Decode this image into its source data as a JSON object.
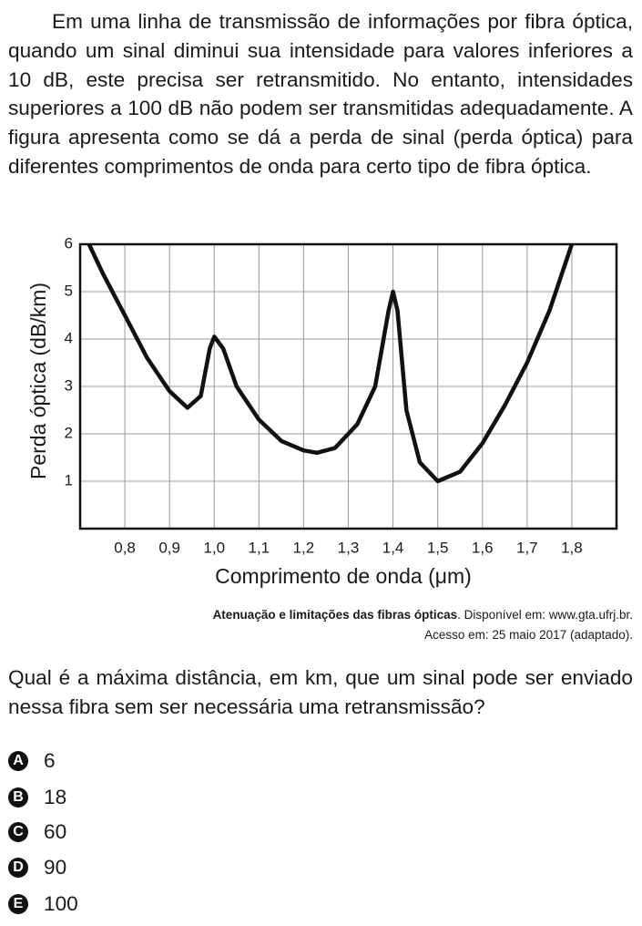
{
  "intro": "Em uma linha de transmissão de informações por fibra óptica, quando um sinal diminui sua intensidade para valores inferiores a 10 dB, este precisa ser retransmitido. No entanto, intensidades superiores a 100 dB não podem ser transmitidas adequadamente. A figura apresenta como se dá a perda de sinal (perda óptica) para diferentes comprimentos de onda para certo tipo de fibra óptica.",
  "chart_data": {
    "type": "line",
    "x_label": "Comprimento de onda (μm)",
    "y_label": "Perda óptica (dB/km)",
    "x": [
      0.72,
      0.75,
      0.8,
      0.85,
      0.9,
      0.94,
      0.97,
      0.99,
      1.0,
      1.02,
      1.05,
      1.1,
      1.15,
      1.2,
      1.23,
      1.27,
      1.32,
      1.36,
      1.39,
      1.4,
      1.41,
      1.43,
      1.46,
      1.5,
      1.55,
      1.6,
      1.65,
      1.7,
      1.75,
      1.8
    ],
    "y": [
      6.0,
      5.4,
      4.5,
      3.6,
      2.9,
      2.55,
      2.8,
      3.8,
      4.05,
      3.8,
      3.0,
      2.3,
      1.85,
      1.65,
      1.6,
      1.7,
      2.2,
      3.0,
      4.6,
      5.0,
      4.6,
      2.5,
      1.4,
      1.0,
      1.2,
      1.8,
      2.6,
      3.5,
      4.6,
      6.0
    ],
    "color": "#111111",
    "xlim": [
      0.7,
      1.9
    ],
    "ylim": [
      0,
      6
    ],
    "xticks": [
      {
        "value": 0.8,
        "label": "0,8"
      },
      {
        "value": 0.9,
        "label": "0,9"
      },
      {
        "value": 1.0,
        "label": "1,0"
      },
      {
        "value": 1.1,
        "label": "1,1"
      },
      {
        "value": 1.2,
        "label": "1,2"
      },
      {
        "value": 1.3,
        "label": "1,3"
      },
      {
        "value": 1.4,
        "label": "1,4"
      },
      {
        "value": 1.5,
        "label": "1,5"
      },
      {
        "value": 1.6,
        "label": "1,6"
      },
      {
        "value": 1.7,
        "label": "1,7"
      },
      {
        "value": 1.8,
        "label": "1,8"
      }
    ],
    "yticks": [
      1,
      2,
      3,
      4,
      5,
      6
    ],
    "grid": true
  },
  "source": {
    "title": "Atenuação e limitações das fibras ópticas",
    "line1": ". Disponível em: www.gta.ufrj.br.",
    "line2": "Acesso em: 25 maio 2017 (adaptado)."
  },
  "question": "Qual é a máxima distância, em km, que um sinal pode ser enviado nessa fibra sem ser necessária uma retransmissão?",
  "options": [
    {
      "letter": "A",
      "text": "6"
    },
    {
      "letter": "B",
      "text": "18"
    },
    {
      "letter": "C",
      "text": "60"
    },
    {
      "letter": "D",
      "text": "90"
    },
    {
      "letter": "E",
      "text": "100"
    }
  ]
}
